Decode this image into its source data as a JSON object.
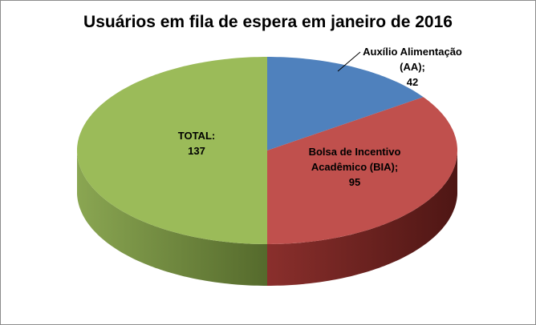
{
  "chart_data": {
    "type": "pie",
    "title": "Usuários em fila de espera em janeiro de 2016",
    "three_d": true,
    "slices": [
      {
        "label_lines": [
          "Auxílio Alimentação",
          "(AA);",
          "42"
        ],
        "category": "Auxílio Alimentação (AA)",
        "value": 42,
        "color": "#4f81bd"
      },
      {
        "label_lines": [
          "Bolsa de Incentivo",
          "Acadêmico (BIA);",
          "95"
        ],
        "category": "Bolsa de Incentivo Acadêmico (BIA)",
        "value": 95,
        "color": "#c0504d"
      },
      {
        "label_lines": [
          "TOTAL:",
          "137"
        ],
        "category": "TOTAL",
        "value": 137,
        "color": "#9bbb59"
      }
    ],
    "legend": "none"
  }
}
